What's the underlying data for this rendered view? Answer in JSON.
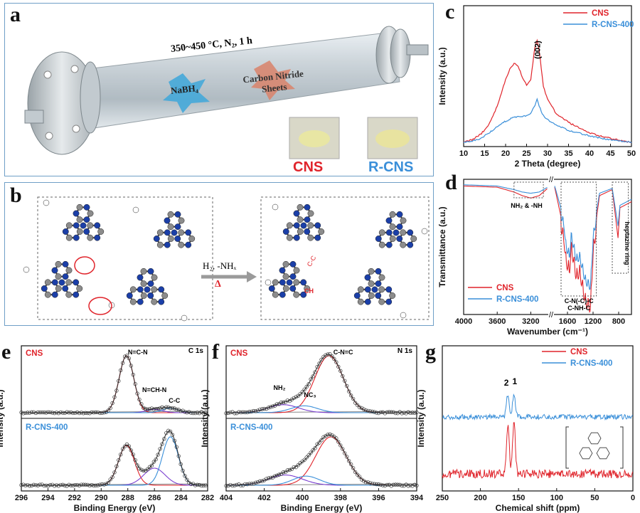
{
  "colors": {
    "cns": "#e0242b",
    "rcns": "#3a8fd9",
    "frame": "#6f9fc7",
    "blue_atom": "#1b3fa8",
    "grey_atom": "#8c8c8c"
  },
  "panel_a": {
    "letter": "a",
    "condition": "350~450 °C, N₂, 1 h",
    "reagent": "NaBH₄",
    "sheets": "Carbon Nitride Sheets",
    "sample1": "CNS",
    "sample2": "R-CNS"
  },
  "panel_b": {
    "letter": "b",
    "arrow_top": "H₂, -NHₓ",
    "arrow_bottom": "Δ",
    "label_cc": "C-C",
    "label_ch": "CH"
  },
  "chart_data": [
    {
      "id": "c",
      "type": "line",
      "xlabel": "2 Theta (degree)",
      "ylabel": "Intensity (a.u.)",
      "xlim": [
        10,
        50
      ],
      "xticks": [
        "10",
        "15",
        "20",
        "25",
        "30",
        "35",
        "40",
        "45",
        "50"
      ],
      "annotation": "(002)",
      "legend": [
        "CNS",
        "R-CNS-400"
      ],
      "series": [
        {
          "name": "CNS",
          "x": [
            10,
            12,
            14,
            16,
            18,
            20,
            21,
            22,
            23,
            24,
            25,
            26,
            27,
            27.5,
            28,
            29,
            30,
            32,
            35,
            40,
            45,
            50
          ],
          "y": [
            0.03,
            0.05,
            0.09,
            0.16,
            0.3,
            0.5,
            0.58,
            0.62,
            0.6,
            0.52,
            0.46,
            0.5,
            0.75,
            0.8,
            0.72,
            0.45,
            0.35,
            0.25,
            0.18,
            0.1,
            0.06,
            0.03
          ]
        },
        {
          "name": "R-CNS-400",
          "x": [
            10,
            12,
            14,
            16,
            18,
            20,
            22,
            24,
            26,
            27,
            27.5,
            28,
            29,
            30,
            32,
            35,
            40,
            45,
            50
          ],
          "y": [
            0.03,
            0.04,
            0.06,
            0.1,
            0.15,
            0.19,
            0.22,
            0.22,
            0.25,
            0.31,
            0.35,
            0.3,
            0.23,
            0.2,
            0.16,
            0.12,
            0.08,
            0.05,
            0.03
          ]
        }
      ]
    },
    {
      "id": "d",
      "type": "line",
      "xlabel": "Wavenumber (cm⁻¹)",
      "ylabel": "Transmittance (a.u.)",
      "xticks": [
        "4000",
        "3600",
        "3200",
        "1600",
        "1200",
        "800"
      ],
      "annotations": [
        "NH₂ & -NH",
        "C-N(-C)-C",
        "C-NH-C",
        "heptazine ring"
      ],
      "legend": [
        "CNS",
        "R-CNS-400"
      ],
      "series": [
        {
          "name": "CNS",
          "x": [
            4000,
            3600,
            3400,
            3300,
            3200,
            3100,
            3000,
            1800,
            1650,
            1630,
            1570,
            1540,
            1460,
            1410,
            1320,
            1240,
            1200,
            1100,
            900,
            810,
            780,
            600
          ],
          "y": [
            0.98,
            0.97,
            0.93,
            0.9,
            0.88,
            0.9,
            0.96,
            0.97,
            0.6,
            0.45,
            0.35,
            0.55,
            0.3,
            0.35,
            0.1,
            0.05,
            0.5,
            0.9,
            0.95,
            0.55,
            0.8,
            0.85
          ]
        },
        {
          "name": "R-CNS-400",
          "x": [
            4000,
            3600,
            3400,
            3300,
            3200,
            3100,
            3000,
            1800,
            1650,
            1630,
            1570,
            1540,
            1460,
            1410,
            1320,
            1240,
            1200,
            1100,
            900,
            810,
            780,
            600
          ],
          "y": [
            0.99,
            0.98,
            0.95,
            0.93,
            0.92,
            0.93,
            0.97,
            0.98,
            0.7,
            0.55,
            0.45,
            0.62,
            0.42,
            0.45,
            0.25,
            0.2,
            0.6,
            0.92,
            0.96,
            0.65,
            0.82,
            0.87
          ]
        }
      ]
    },
    {
      "id": "e",
      "type": "line",
      "xlabel": "Binding Energy (eV)",
      "ylabel": "Intensity (a.u.)",
      "xlim": [
        296,
        282
      ],
      "xticks": [
        "296",
        "294",
        "292",
        "290",
        "288",
        "286",
        "284",
        "282"
      ],
      "tag": "C 1s",
      "top_label": "CNS",
      "bottom_label": "R-CNS-400",
      "annotations": [
        "N=C-N",
        "N=CH-N",
        "C-C"
      ],
      "peaks_top": [
        {
          "center": 288.1,
          "height": 1.0,
          "width": 0.55,
          "label": "N=C-N"
        },
        {
          "center": 286.0,
          "height": 0.06,
          "width": 0.6,
          "label": "N=CH-N"
        },
        {
          "center": 284.8,
          "height": 0.08,
          "width": 0.6,
          "label": "C-C"
        }
      ],
      "peaks_bottom": [
        {
          "center": 288.1,
          "height": 0.7,
          "width": 0.6
        },
        {
          "center": 286.0,
          "height": 0.3,
          "width": 0.8
        },
        {
          "center": 284.8,
          "height": 0.85,
          "width": 0.6
        }
      ]
    },
    {
      "id": "f",
      "type": "line",
      "xlabel": "Binding Energy (eV)",
      "ylabel": "Intensity (a.u.)",
      "xlim": [
        404,
        394
      ],
      "xticks": [
        "404",
        "402",
        "400",
        "398",
        "396",
        "394"
      ],
      "tag": "N 1s",
      "top_label": "CNS",
      "bottom_label": "R-CNS-400",
      "annotations": [
        "C-N=C",
        "NH₂",
        "NC₃"
      ],
      "peaks_top": [
        {
          "center": 398.6,
          "height": 1.0,
          "width": 0.75,
          "label": "C-N=C"
        },
        {
          "center": 401.0,
          "height": 0.14,
          "width": 0.8,
          "label": "NH₂"
        },
        {
          "center": 399.9,
          "height": 0.12,
          "width": 0.7,
          "label": "NC₃"
        }
      ],
      "peaks_bottom": [
        {
          "center": 398.5,
          "height": 0.85,
          "width": 0.8
        },
        {
          "center": 400.9,
          "height": 0.18,
          "width": 0.9
        },
        {
          "center": 399.8,
          "height": 0.16,
          "width": 0.7
        }
      ]
    },
    {
      "id": "g",
      "type": "line",
      "xlabel": "Chemical shift (ppm)",
      "ylabel": "Intensity (a.u.)",
      "xlim": [
        250,
        0
      ],
      "xticks": [
        "250",
        "200",
        "150",
        "100",
        "50",
        "0"
      ],
      "peak_labels": [
        "2",
        "1"
      ],
      "legend": [
        "CNS",
        "R-CNS-400"
      ],
      "peaks": [
        164,
        156
      ]
    }
  ],
  "letters": {
    "c": "c",
    "d": "d",
    "e": "e",
    "f": "f",
    "g": "g"
  }
}
